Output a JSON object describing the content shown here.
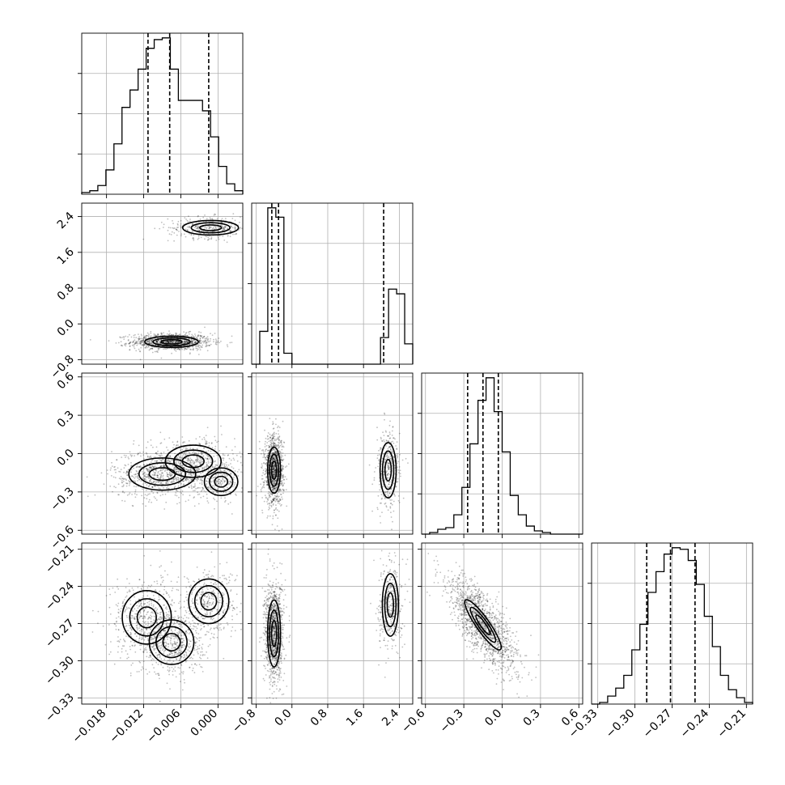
{
  "chart_data": {
    "type": "corner",
    "title": "",
    "grid": true,
    "parameters": [
      {
        "ticks": [
          -0.018,
          -0.012,
          -0.006,
          0.0
        ],
        "tick_labels": [
          "−0.018",
          "−0.012",
          "−0.006",
          "0.000"
        ],
        "range": [
          -0.022,
          0.004
        ],
        "quantiles": [
          -0.0113,
          -0.0078,
          -0.0015
        ]
      },
      {
        "ticks": [
          -0.8,
          0.0,
          0.8,
          1.6,
          2.4
        ],
        "tick_labels": [
          "−0.8",
          "0.0",
          "0.8",
          "1.6",
          "2.4"
        ],
        "range": [
          -0.9,
          2.7
        ],
        "quantiles": [
          -0.45,
          -0.3,
          2.05
        ]
      },
      {
        "ticks": [
          -0.6,
          -0.3,
          0.0,
          0.3,
          0.6
        ],
        "tick_labels": [
          "−0.6",
          "−0.3",
          "0.0",
          "0.3",
          "0.6"
        ],
        "range": [
          -0.63,
          0.63
        ],
        "quantiles": [
          -0.27,
          -0.15,
          -0.03
        ]
      },
      {
        "ticks": [
          -0.33,
          -0.3,
          -0.27,
          -0.24,
          -0.21
        ],
        "tick_labels": [
          "−0.33",
          "−0.30",
          "−0.27",
          "−0.24",
          "−0.21"
        ],
        "range": [
          -0.335,
          -0.205
        ],
        "quantiles": [
          -0.2905,
          -0.2713,
          -0.2515
        ]
      }
    ],
    "histograms": [
      {
        "bins": 20,
        "counts": [
          1,
          2,
          5,
          14,
          29,
          50,
          60,
          72,
          84,
          89,
          90,
          72,
          54,
          54,
          54,
          48,
          33,
          16,
          6,
          2
        ]
      },
      {
        "bins": 20,
        "counts": [
          0,
          21,
          100,
          94,
          7,
          0,
          0,
          0,
          0,
          0,
          0,
          0,
          0,
          0,
          0,
          0,
          17,
          48,
          45,
          13
        ]
      },
      {
        "bins": 20,
        "counts": [
          0,
          1,
          3,
          4,
          12,
          29,
          56,
          83,
          97,
          76,
          51,
          24,
          12,
          5,
          2,
          1,
          0,
          0,
          0,
          0
        ]
      },
      {
        "bins": 20,
        "counts": [
          0,
          1,
          5,
          10,
          18,
          34,
          50,
          70,
          83,
          94,
          98,
          97,
          90,
          75,
          55,
          36,
          18,
          9,
          4,
          1
        ]
      }
    ],
    "panels_2d": [
      {
        "x": 0,
        "y": 1,
        "modes": [
          {
            "cx": -0.0075,
            "cy": -0.4,
            "sx": 0.0024,
            "sy": 0.07,
            "w": 0.75
          },
          {
            "cx": -0.0012,
            "cy": 2.15,
            "sx": 0.0025,
            "sy": 0.09,
            "w": 0.25
          }
        ]
      },
      {
        "x": 0,
        "y": 2,
        "modes": [
          {
            "cx": -0.009,
            "cy": -0.16,
            "sx": 0.003,
            "sy": 0.07,
            "w": 0.55
          },
          {
            "cx": -0.004,
            "cy": -0.06,
            "sx": 0.0025,
            "sy": 0.07,
            "w": 0.3
          },
          {
            "cx": 0.0005,
            "cy": -0.22,
            "sx": 0.0015,
            "sy": 0.06,
            "w": 0.15
          }
        ]
      },
      {
        "x": 1,
        "y": 2,
        "modes": [
          {
            "cx": -0.4,
            "cy": -0.13,
            "sx": 0.08,
            "sy": 0.1,
            "w": 0.75
          },
          {
            "cx": 2.15,
            "cy": -0.13,
            "sx": 0.1,
            "sy": 0.12,
            "w": 0.25
          }
        ]
      },
      {
        "x": 0,
        "y": 3,
        "modes": [
          {
            "cx": -0.0115,
            "cy": -0.265,
            "sx": 0.0022,
            "sy": 0.012,
            "w": 0.35
          },
          {
            "cx": -0.0075,
            "cy": -0.285,
            "sx": 0.002,
            "sy": 0.01,
            "w": 0.4
          },
          {
            "cx": -0.0015,
            "cy": -0.252,
            "sx": 0.0018,
            "sy": 0.01,
            "w": 0.25
          }
        ]
      },
      {
        "x": 1,
        "y": 3,
        "modes": [
          {
            "cx": -0.4,
            "cy": -0.278,
            "sx": 0.08,
            "sy": 0.015,
            "w": 0.75
          },
          {
            "cx": 2.2,
            "cy": -0.255,
            "sx": 0.1,
            "sy": 0.014,
            "w": 0.25
          }
        ]
      },
      {
        "x": 2,
        "y": 3,
        "modes": [
          {
            "cx": -0.15,
            "cy": -0.271,
            "sx": 0.1,
            "sy": 0.014,
            "w": 1.0,
            "rho": -0.75
          }
        ]
      }
    ]
  }
}
